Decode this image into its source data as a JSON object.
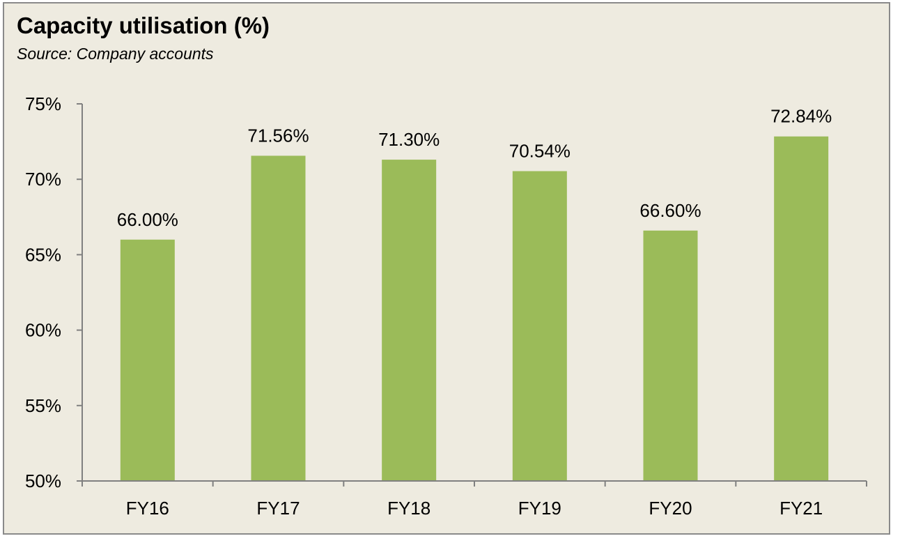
{
  "colors": {
    "background": "#eeebe0",
    "bar": "#9bbb59",
    "axis": "#808080"
  },
  "chart_data": {
    "type": "bar",
    "title": "Capacity utilisation (%)",
    "subtitle": "Source: Company accounts",
    "categories": [
      "FY16",
      "FY17",
      "FY18",
      "FY19",
      "FY20",
      "FY21"
    ],
    "values": [
      66.0,
      71.56,
      71.3,
      70.54,
      66.6,
      72.84
    ],
    "value_labels": [
      "66.00%",
      "71.56%",
      "71.30%",
      "70.54%",
      "66.60%",
      "72.84%"
    ],
    "ylim": [
      50,
      75
    ],
    "yticks": [
      50,
      55,
      60,
      65,
      70,
      75
    ],
    "ytick_labels": [
      "50%",
      "55%",
      "60%",
      "65%",
      "70%",
      "75%"
    ],
    "xlabel": "",
    "ylabel": "",
    "grid": false,
    "legend": "none"
  }
}
